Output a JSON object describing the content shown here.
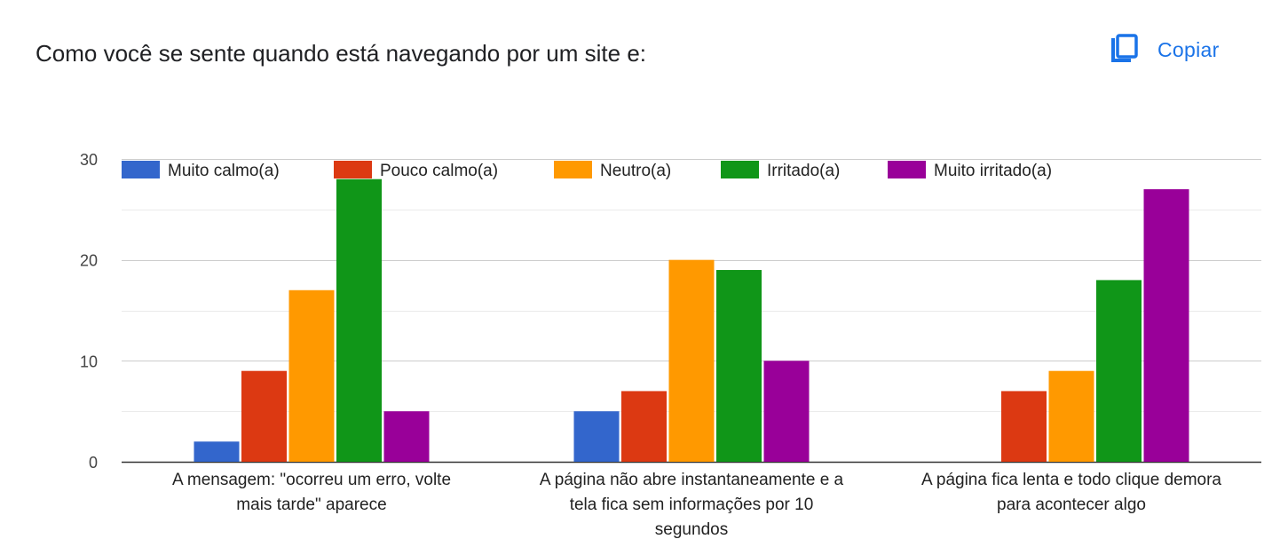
{
  "header": {
    "question_title": "Como você se sente quando está navegando por um site e:",
    "copy_label": "Copiar",
    "copy_icon": "copy-icon",
    "accent_color": "#1a73e8"
  },
  "chart_data": {
    "type": "bar",
    "title": "",
    "xlabel": "",
    "ylabel": "",
    "ylim": [
      0,
      30
    ],
    "yticks": [
      0,
      10,
      20,
      30
    ],
    "grid": true,
    "legend_position": "top",
    "categories": [
      [
        "A mensagem: \"ocorreu um erro, volte",
        "mais tarde\" aparece"
      ],
      [
        "A página não abre instantaneamente e a",
        "tela fica sem informações por 10",
        "segundos"
      ],
      [
        "A página fica lenta e todo clique demora",
        "para acontecer algo"
      ]
    ],
    "series": [
      {
        "name": "Muito calmo(a)",
        "color": "#3366cc",
        "values": [
          2,
          5,
          0
        ]
      },
      {
        "name": "Pouco calmo(a)",
        "color": "#dc3912",
        "values": [
          9,
          7,
          7
        ]
      },
      {
        "name": "Neutro(a)",
        "color": "#ff9900",
        "values": [
          17,
          20,
          9
        ]
      },
      {
        "name": "Irritado(a)",
        "color": "#109618",
        "values": [
          28,
          19,
          18
        ]
      },
      {
        "name": "Muito irritado(a)",
        "color": "#990099",
        "values": [
          5,
          10,
          27
        ]
      }
    ]
  }
}
